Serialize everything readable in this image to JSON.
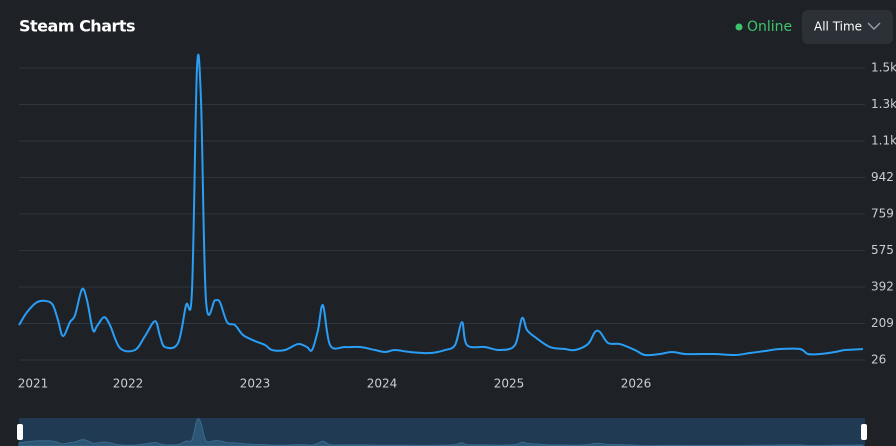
{
  "header": {
    "title": "Steam Charts",
    "status": "Online",
    "range_button": "All Time"
  },
  "chart_data": {
    "type": "line",
    "x": [
      2021.142,
      2021.205,
      2021.283,
      2021.362,
      2021.409,
      2021.449,
      2021.488,
      2021.543,
      2021.583,
      2021.638,
      2021.677,
      2021.724,
      2021.756,
      2021.811,
      2021.858,
      2021.937,
      2022.055,
      2022.134,
      2022.213,
      2022.252,
      2022.291,
      2022.394,
      2022.457,
      2022.504,
      2022.543,
      2022.575,
      2022.614,
      2022.685,
      2022.724,
      2022.78,
      2022.843,
      2022.906,
      2023.0,
      2023.079,
      2023.134,
      2023.236,
      2023.339,
      2023.409,
      2023.449,
      2023.496,
      2023.535,
      2023.591,
      2023.709,
      2023.827,
      2023.945,
      2024.024,
      2024.102,
      2024.22,
      2024.378,
      2024.496,
      2024.575,
      2024.63,
      2024.669,
      2024.811,
      2024.929,
      2025.047,
      2025.102,
      2025.142,
      2025.205,
      2025.323,
      2025.441,
      2025.52,
      2025.622,
      2025.677,
      2025.717,
      2025.78,
      2025.874,
      2025.992,
      2026.071,
      2026.189,
      2026.283,
      2026.386,
      2026.504,
      2026.622,
      2026.78,
      2026.898,
      2027.016,
      2027.134,
      2027.291,
      2027.354,
      2027.449,
      2027.567,
      2027.646,
      2027.787
    ],
    "series": [
      {
        "name": "Online",
        "color": "#2a9df4",
        "values": [
          201,
          266,
          316,
          321,
          301,
          226,
          146,
          216,
          251,
          381,
          326,
          176,
          196,
          241,
          201,
          86,
          76,
          146,
          221,
          146,
          91,
          111,
          301,
          376,
          1486,
          1326,
          326,
          326,
          316,
          216,
          201,
          151,
          121,
          101,
          76,
          76,
          106,
          91,
          76,
          176,
          301,
          101,
          91,
          91,
          76,
          66,
          76,
          66,
          61,
          76,
          101,
          216,
          101,
          91,
          76,
          101,
          236,
          176,
          141,
          91,
          81,
          76,
          106,
          166,
          166,
          111,
          106,
          76,
          51,
          56,
          66,
          56,
          56,
          56,
          51,
          61,
          71,
          81,
          81,
          56,
          56,
          66,
          76,
          81
        ]
      }
    ],
    "xlim": [
      2021,
      2027.8
    ],
    "xticks": [
      2021,
      2022,
      2023,
      2024,
      2025,
      2026
    ],
    "ylim": [
      26,
      1491
    ],
    "yticks": [
      26,
      209,
      392,
      575,
      759,
      942,
      {
        "value": 1125,
        "label": "1.1k"
      },
      {
        "value": 1308,
        "label": "1.3k"
      },
      {
        "value": 1491,
        "label": "1.5k"
      }
    ],
    "grid": true
  }
}
